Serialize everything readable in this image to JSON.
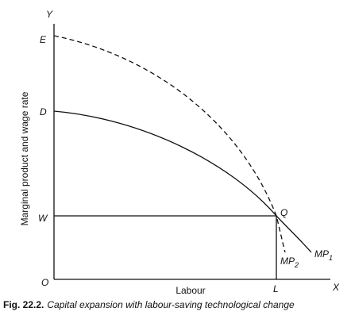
{
  "diagram": {
    "axes": {
      "y_label": "Y",
      "x_label": "X",
      "origin": "O",
      "y_title": "Marginal product and wage rate",
      "x_title": "Labour"
    },
    "points": {
      "E": "E",
      "D": "D",
      "W": "W",
      "Q": "Q",
      "L": "L"
    },
    "curves": [
      {
        "name": "MP",
        "sub": "1"
      },
      {
        "name": "MP",
        "sub": "2"
      }
    ],
    "caption": {
      "number": "Fig. 22.2.",
      "text": "Capital expansion with labour-saving technological change"
    }
  }
}
